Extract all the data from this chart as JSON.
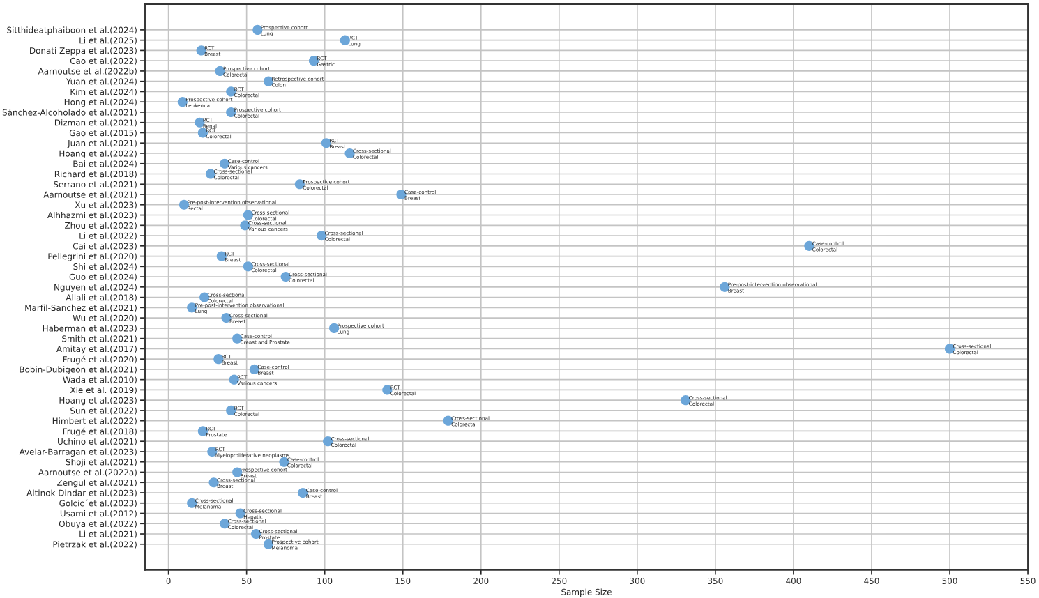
{
  "chart_data": {
    "type": "scatter",
    "orientation": "horizontal",
    "xlabel": "Sample Size",
    "marker": "circle",
    "grid": true,
    "color": "#6ca6d9",
    "categories": [
      "Sitthideatphaiboon et al.(2024)",
      "Li et al.(2025)",
      "Donati Zeppa et al.(2023)",
      "Cao et al.(2022)",
      "Aarnoutse et al.(2022b)",
      "Yuan et al.(2024)",
      "Kim et al.(2024)",
      "Hong et al.(2024)",
      "Sánchez-Alcoholado et al.(2021)",
      "Dizman et al.(2021)",
      "Gao et al.(2015)",
      "Juan et al.(2021)",
      "Hoang et al.(2022)",
      "Bai et al.(2024)",
      "Richard et al.(2018)",
      "Serrano et al.(2021)",
      "Aarnoutse et al.(2021)",
      "Xu et al.(2023)",
      "Alhhazmi et al.(2023)",
      "Zhou et al.(2022)",
      "Li et al.(2022)",
      "Cai et al.(2023)",
      "Pellegrini et al.(2020)",
      "Shi et al.(2024)",
      "Guo et al.(2024)",
      "Nguyen et al.(2024)",
      "Allali et al.(2018)",
      "Marfil-Sanchez et al.(2021)",
      "Wu et al.(2020)",
      "Haberman et al.(2023)",
      "Smith et al.(2021)",
      "Amitay et al.(2017)",
      "Frugé et al.(2020)",
      "Bobin-Dubigeon et al.(2021)",
      "Wada et al.(2010)",
      "Xie et al. (2019)",
      "Hoang et al.(2023)",
      "Sun et al.(2022)",
      "Himbert et al.(2022)",
      "Frugé et al.(2018)",
      "Uchino et al.(2021)",
      "Avelar-Barragan et al.(2023)",
      "Shoji et al.(2021)",
      "Aarnoutse et al.(2022a)",
      "Zengul et al.(2021)",
      "Altinok Dindar et al.(2023)",
      "Golcic´et al.(2023)",
      "Usami et al.(2012)",
      "Obuya et al.(2022)",
      "Li et al.(2021)",
      "Pietrzak et al.(2022)"
    ],
    "values": [
      57,
      113,
      21,
      93,
      33,
      64,
      40,
      9,
      40,
      20,
      22,
      101,
      116,
      36,
      27,
      84,
      149,
      10,
      51,
      49,
      98,
      410,
      34,
      51,
      75,
      356,
      23,
      15,
      37,
      106,
      44,
      500,
      32,
      55,
      42,
      140,
      331,
      40,
      179,
      22,
      102,
      28,
      74,
      44,
      29,
      86,
      15,
      46,
      36,
      56,
      64
    ],
    "xlim": [
      -15,
      550
    ],
    "xticks": [
      0,
      50,
      100,
      150,
      200,
      250,
      300,
      350,
      400,
      450,
      500,
      550
    ],
    "annotations": [
      {
        "text": "Prospective cohort\nLung",
        "x": 57,
        "y": "Sitthideatphaiboon et al.(2024)"
      },
      {
        "text": "RCT\nLung",
        "x": 113,
        "y": "Li et al.(2025)"
      },
      {
        "text": "RCT\nBreast",
        "x": 21,
        "y": "Donati Zeppa et al.(2023)"
      },
      {
        "text": "RCT\nGastric",
        "x": 93,
        "y": "Cao et al.(2022)"
      },
      {
        "text": "Prospective cohort\nColorectal",
        "x": 33,
        "y": "Aarnoutse et al.(2022b)"
      },
      {
        "text": "Retrospective cohort\nColon",
        "x": 64,
        "y": "Yuan et al.(2024)"
      },
      {
        "text": "RCT\nColorectal",
        "x": 40,
        "y": "Kim et al.(2024)"
      },
      {
        "text": "Prospective cohort\nLeukemia",
        "x": 9,
        "y": "Hong et al.(2024)"
      },
      {
        "text": "Prospective cohort\nColorectal",
        "x": 40,
        "y": "Sánchez-Alcoholado et al.(2021)"
      },
      {
        "text": "RCT\nRenal",
        "x": 20,
        "y": "Dizman et al.(2021)"
      },
      {
        "text": "RCT\nColorectal",
        "x": 22,
        "y": "Gao et al.(2015)"
      },
      {
        "text": "RCT\nBreast",
        "x": 101,
        "y": "Juan et al.(2021)"
      },
      {
        "text": "Cross-sectional\nColorectal",
        "x": 116,
        "y": "Hoang et al.(2022)"
      },
      {
        "text": "Case-control\nVarious cancers",
        "x": 36,
        "y": "Bai et al.(2024)"
      },
      {
        "text": "Cross-sectional\nColorectal",
        "x": 27,
        "y": "Richard et al.(2018)"
      },
      {
        "text": "Prospective cohort\nColorectal",
        "x": 84,
        "y": "Serrano et al.(2021)"
      },
      {
        "text": "Case-control\nBreast",
        "x": 149,
        "y": "Aarnoutse et al.(2021)"
      },
      {
        "text": "Pre-post-intervention observational\nRectal",
        "x": 10,
        "y": "Xu et al.(2023)"
      },
      {
        "text": "Cross-sectional\nColorectal",
        "x": 51,
        "y": "Alhhazmi et al.(2023)"
      },
      {
        "text": "Cross-sectional\nVarious cancers",
        "x": 49,
        "y": "Zhou et al.(2022)"
      },
      {
        "text": "Cross-sectional\nColorectal",
        "x": 98,
        "y": "Li et al.(2022)"
      },
      {
        "text": "Case-control\nColorectal",
        "x": 410,
        "y": "Cai et al.(2023)"
      },
      {
        "text": "RCT\nBreast",
        "x": 34,
        "y": "Pellegrini et al.(2020)"
      },
      {
        "text": "Cross-sectional\nColorectal",
        "x": 51,
        "y": "Shi et al.(2024)"
      },
      {
        "text": "Cross-sectional\nColorectal",
        "x": 75,
        "y": "Guo et al.(2024)"
      },
      {
        "text": "Pre-post-intervention observational\nBreast",
        "x": 356,
        "y": "Nguyen et al.(2024)"
      },
      {
        "text": "Cross-sectional\nColorectal",
        "x": 23,
        "y": "Allali et al.(2018)"
      },
      {
        "text": "Pre-post-intervention observational\nLung",
        "x": 15,
        "y": "Marfil-Sanchez et al.(2021)"
      },
      {
        "text": "Cross-sectional\nBreast",
        "x": 37,
        "y": "Wu et al.(2020)"
      },
      {
        "text": "Prospective cohort\nLung",
        "x": 106,
        "y": "Haberman et al.(2023)"
      },
      {
        "text": "Case-control\nBreast and Prostate",
        "x": 44,
        "y": "Smith et al.(2021)"
      },
      {
        "text": "Cross-sectional\nColorectal",
        "x": 500,
        "y": "Amitay et al.(2017)"
      },
      {
        "text": "RCT\nBreast",
        "x": 32,
        "y": "Frugé et al.(2020)"
      },
      {
        "text": "Case-control\nBreast",
        "x": 55,
        "y": "Bobin-Dubigeon et al.(2021)"
      },
      {
        "text": "RCT\nVarious cancers",
        "x": 42,
        "y": "Wada et al.(2010)"
      },
      {
        "text": "RCT\nColorectal",
        "x": 140,
        "y": "Xie et al. (2019)"
      },
      {
        "text": "Cross-sectional\nColorectal",
        "x": 331,
        "y": "Hoang et al.(2023)"
      },
      {
        "text": "RCT\nColorectal",
        "x": 40,
        "y": "Sun et al.(2022)"
      },
      {
        "text": "Cross-sectional\nColorectal",
        "x": 179,
        "y": "Himbert et al.(2022)"
      },
      {
        "text": "RCT\nProstate",
        "x": 22,
        "y": "Frugé et al.(2018)"
      },
      {
        "text": "Cross-sectional\nColorectal",
        "x": 102,
        "y": "Uchino et al.(2021)"
      },
      {
        "text": "RCT\nMyeloproliferative neoplasms",
        "x": 28,
        "y": "Avelar-Barragan et al.(2023)"
      },
      {
        "text": "Case-control\nColorectal",
        "x": 74,
        "y": "Shoji et al.(2021)"
      },
      {
        "text": "Prospective cohort\nBreast",
        "x": 44,
        "y": "Aarnoutse et al.(2022a)"
      },
      {
        "text": "Cross-sectional\nBreast",
        "x": 29,
        "y": "Zengul et al.(2021)"
      },
      {
        "text": "Case-control\nBreast",
        "x": 86,
        "y": "Altinok Dindar et al.(2023)"
      },
      {
        "text": "Cross-sectional\nMelanoma",
        "x": 15,
        "y": "Golcic´et al.(2023)"
      },
      {
        "text": "Cross-sectional\nHepatic",
        "x": 46,
        "y": "Usami et al.(2012)"
      },
      {
        "text": "Cross-sectional\nColorectal",
        "x": 36,
        "y": "Obuya et al.(2022)"
      },
      {
        "text": "Cross-sectional\nProstate",
        "x": 56,
        "y": "Li et al.(2021)"
      },
      {
        "text": "Prospective cohort\nMelanoma",
        "x": 64,
        "y": "Pietrzak et al.(2022)"
      }
    ]
  }
}
